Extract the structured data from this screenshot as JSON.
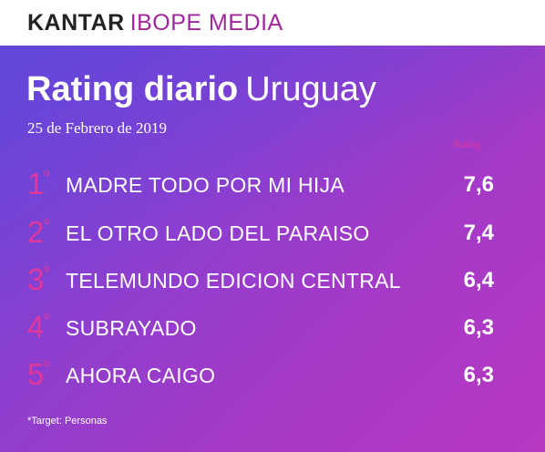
{
  "logo": {
    "part1": "KANTAR",
    "part2": "IBOPE MEDIA"
  },
  "title": {
    "bold": "Rating diario",
    "light": "Uruguay"
  },
  "date": "25 de Febrero de 2019",
  "column_header": "Rating",
  "rankings": [
    {
      "rank": "1",
      "sup": "º",
      "name": "MADRE TODO POR MI HIJA",
      "value": "7,6"
    },
    {
      "rank": "2",
      "sup": "º",
      "name": "EL OTRO LADO DEL PARAISO",
      "value": "7,4"
    },
    {
      "rank": "3",
      "sup": "º",
      "name": "TELEMUNDO EDICION CENTRAL",
      "value": "6,4"
    },
    {
      "rank": "4",
      "sup": "º",
      "name": "SUBRAYADO",
      "value": "6,3"
    },
    {
      "rank": "5",
      "sup": "º",
      "name": "AHORA CAIGO",
      "value": "6,3"
    }
  ],
  "footnote": "*Target: Personas",
  "colors": {
    "accent": "#e0379d",
    "brand": "#a0279b"
  }
}
